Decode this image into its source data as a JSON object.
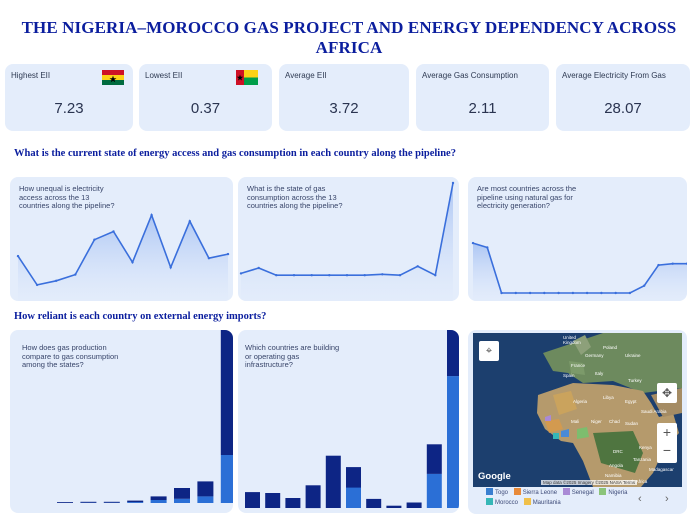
{
  "title": "THE NIGERIA–MOROCCO GAS PROJECT AND ENERGY DEPENDENCY ACROSS AFRICA",
  "kpis": [
    {
      "label": "Highest EII",
      "value": "7.23",
      "flag": "ghana"
    },
    {
      "label": "Lowest EII",
      "value": "0.37",
      "flag": "guinea-bissau"
    },
    {
      "label": "Average EII",
      "value": "3.72"
    },
    {
      "label": "Average Gas Consumption",
      "value": "2.11"
    },
    {
      "label": "Average Electricity From Gas",
      "value": "28.07"
    }
  ],
  "section1": {
    "question": "What is the current state of energy access and gas consumption in each country along the pipeline?"
  },
  "section2": {
    "question": "How reliant is each country on external energy imports?"
  },
  "colors": {
    "title": "#0b1e9e",
    "card": "#e4edfb",
    "line": "#3a6fdc",
    "bar_dark": "#0d2585",
    "bar_light": "#2b6fd6"
  },
  "charts": {
    "c1": {
      "question": "How unequal is electricity access across the 13 countries along the pipeline?"
    },
    "c2": {
      "question": "What is the state of gas consumption across the 13 countries along the pipeline?"
    },
    "c3": {
      "question": "Are most countries across the pipeline using natural gas for electricity generation?"
    },
    "c4": {
      "question": "How does gas production compare to gas consumption among the states?"
    },
    "c5": {
      "question": "Which countries are building or operating gas infrastructure?"
    }
  },
  "chart_data": [
    {
      "type": "area",
      "id": "c1",
      "values": [
        3.2,
        0.4,
        0.8,
        1.4,
        4.8,
        5.6,
        2.6,
        7.2,
        2.1,
        6.6,
        3.0,
        3.4
      ]
    },
    {
      "type": "area",
      "id": "c2",
      "values": [
        0.8,
        2.0,
        0.4,
        0.4,
        0.4,
        0.4,
        0.4,
        0.4,
        0.6,
        0.4,
        2.4,
        0.4,
        21.0
      ]
    },
    {
      "type": "area",
      "id": "c3",
      "values": [
        68,
        62,
        0,
        0,
        0,
        0,
        0,
        0,
        0,
        0,
        0,
        0,
        10,
        38,
        40,
        40
      ]
    },
    {
      "type": "bar",
      "id": "c4",
      "series": [
        {
          "name": "dark",
          "values": [
            0.2,
            0.3,
            0.3,
            0.5,
            1.2,
            3.6,
            5.0,
            48.0
          ]
        },
        {
          "name": "light",
          "values": [
            0.1,
            0.1,
            0.1,
            0.3,
            1.0,
            1.4,
            2.2,
            16.0
          ]
        }
      ]
    },
    {
      "type": "bar",
      "id": "c5",
      "series": [
        {
          "name": "dark",
          "values": [
            3.5,
            3.3,
            2.2,
            5.0,
            11.5,
            4.5,
            2.0,
            0.5,
            1.2,
            6.5,
            34.0
          ]
        },
        {
          "name": "light",
          "values": [
            0,
            0,
            0,
            0,
            0,
            4.5,
            0,
            0,
            0,
            7.5,
            29.0
          ]
        }
      ]
    }
  ],
  "map": {
    "labels": [
      "United Kingdom",
      "Poland",
      "Germany",
      "Ukraine",
      "France",
      "Italy",
      "Spain",
      "Turkey",
      "Algeria",
      "Libya",
      "Egypt",
      "Saudi Arabia",
      "Mali",
      "Niger",
      "Chad",
      "Sudan",
      "DRC",
      "Kenya",
      "Tanzania",
      "Angola",
      "Namibia",
      "South Africa",
      "Madagascar"
    ],
    "google": "Google",
    "attribution": "Map data ©2025 Imagery ©2025 NASA   Terms",
    "legend": [
      {
        "label": "Togo",
        "color": "#3a7fd0"
      },
      {
        "label": "Sierra Leone",
        "color": "#e88a3a"
      },
      {
        "label": "Senegal",
        "color": "#a98ad6"
      },
      {
        "label": "Nigeria",
        "color": "#8bc47a"
      },
      {
        "label": "Morocco",
        "color": "#36b7b7"
      },
      {
        "label": "Mauritania",
        "color": "#f0c04a"
      }
    ],
    "zoom_in": "+",
    "zoom_out": "−",
    "prev": "‹",
    "next": "›"
  }
}
